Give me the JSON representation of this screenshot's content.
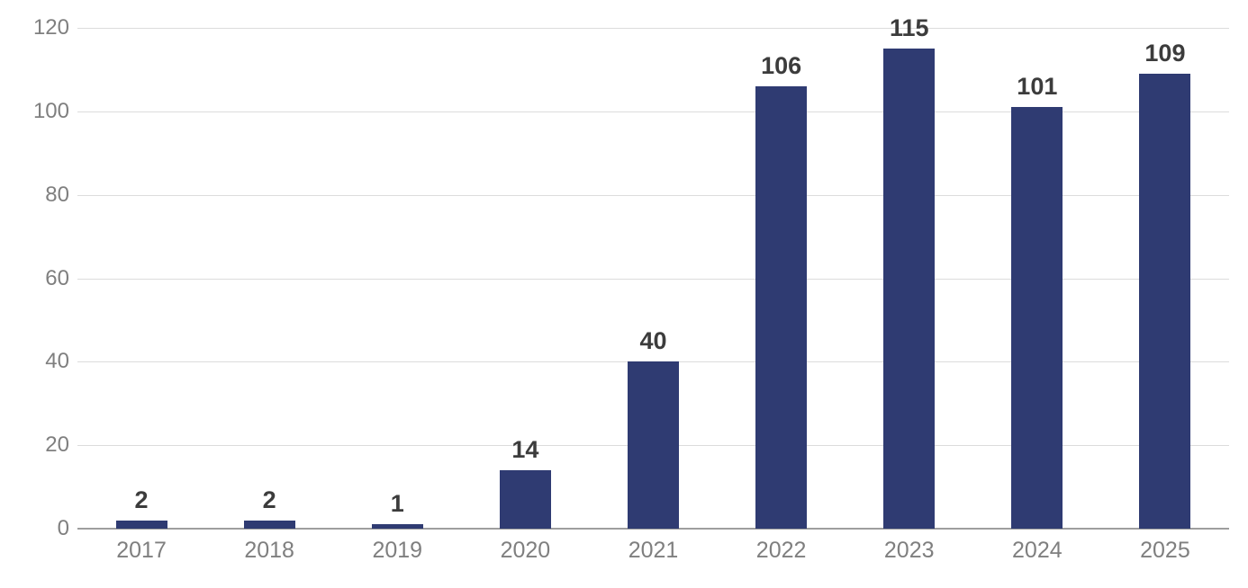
{
  "chart_data": {
    "type": "bar",
    "title": "",
    "xlabel": "",
    "ylabel": "",
    "categories": [
      "2017",
      "2018",
      "2019",
      "2020",
      "2021",
      "2022",
      "2023",
      "2024",
      "2025"
    ],
    "values": [
      2,
      2,
      1,
      14,
      40,
      106,
      115,
      101,
      109
    ],
    "data_labels": [
      "2",
      "2",
      "1",
      "14",
      "40",
      "106",
      "115",
      "101",
      "109"
    ],
    "ylim": [
      0,
      120
    ],
    "yticks": [
      0,
      20,
      40,
      60,
      80,
      100,
      120
    ],
    "ytick_labels": [
      "0",
      "20",
      "40",
      "60",
      "80",
      "100",
      "120"
    ],
    "grid": true,
    "legend": false,
    "colors": {
      "bar": "#2F3B72",
      "gridline": "#DCDCDC",
      "axis_line": "#9E9E9E",
      "tick_label": "#7F7F7F",
      "data_label": "#3C3C3C",
      "background": "#FFFFFF"
    }
  }
}
